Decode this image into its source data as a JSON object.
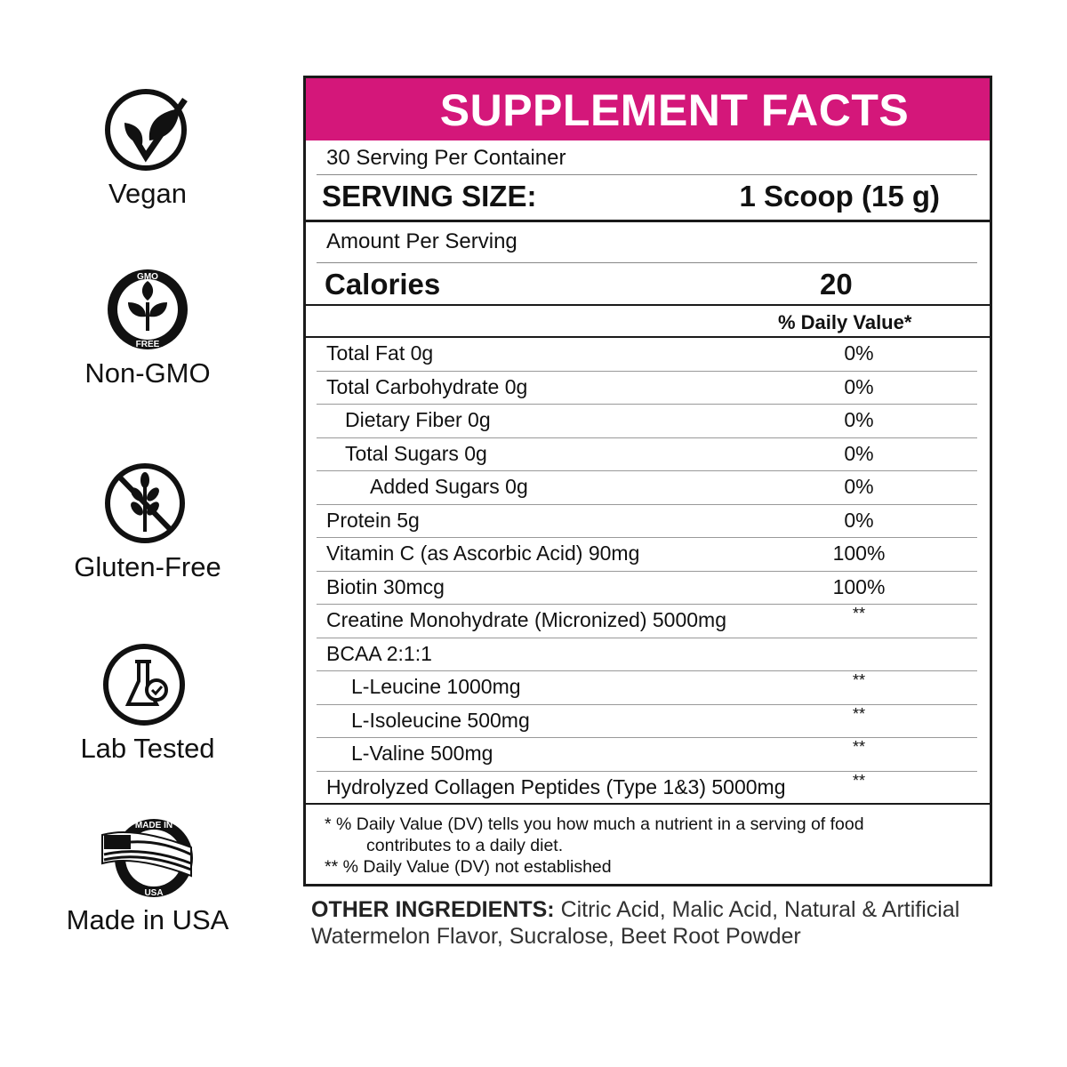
{
  "badges": [
    {
      "icon": "vegan-leaf-check-icon",
      "label": "Vegan"
    },
    {
      "icon": "non-gmo-icon",
      "label": "Non-GMO",
      "ring_top": "GMO",
      "ring_bottom": "FREE"
    },
    {
      "icon": "gluten-free-icon",
      "label": "Gluten-Free"
    },
    {
      "icon": "lab-flask-icon",
      "label": "Lab Tested"
    },
    {
      "icon": "usa-flag-seal-icon",
      "label": "Made in USA",
      "seal_top": "MADE IN",
      "seal_bottom": "USA"
    }
  ],
  "facts": {
    "title": "SUPPLEMENT FACTS",
    "accent_color": "#d4177a",
    "servings_per_container": "30 Serving Per Container",
    "serving_size_label": "SERVING SIZE:",
    "serving_size_value": "1 Scoop (15 g)",
    "amount_per_serving": "Amount Per Serving",
    "calories_label": "Calories",
    "calories_value": "20",
    "dv_header": "% Daily Value*",
    "rows": [
      {
        "name": "Total Fat 0g",
        "dv": "0%",
        "indent": 0
      },
      {
        "name": "Total Carbohydrate 0g",
        "dv": "0%",
        "indent": 0
      },
      {
        "name": "Dietary Fiber 0g",
        "dv": "0%",
        "indent": 1
      },
      {
        "name": "Total Sugars 0g",
        "dv": "0%",
        "indent": 1
      },
      {
        "name": "Added Sugars 0g",
        "dv": "0%",
        "indent": 2
      },
      {
        "name": "Protein 5g",
        "dv": "0%",
        "indent": 0
      },
      {
        "name": "Vitamin C (as Ascorbic Acid) 90mg",
        "dv": "100%",
        "indent": 0
      },
      {
        "name": "Biotin 30mcg",
        "dv": "100%",
        "indent": 0
      },
      {
        "name": "Creatine Monohydrate (Micronized) 5000mg",
        "dv": "**",
        "indent": 0
      },
      {
        "name": "BCAA 2:1:1",
        "dv": "",
        "indent": 0
      },
      {
        "name": "L-Leucine 1000mg",
        "dv": "**",
        "indent": 1
      },
      {
        "name": "L-Isoleucine 500mg",
        "dv": "**",
        "indent": 1
      },
      {
        "name": "L-Valine 500mg",
        "dv": "**",
        "indent": 1
      },
      {
        "name": "Hydrolyzed Collagen Peptides (Type 1&3) 5000mg",
        "dv": "**",
        "indent": 0
      }
    ],
    "footnote_1a": "* %  Daily Value (DV) tells you how much a nutrient in a serving of food",
    "footnote_1b": "contributes to a daily diet.",
    "footnote_2": "** % Daily Value (DV) not established"
  },
  "other_ingredients": {
    "label": "OTHER INGREDIENTS:",
    "text": " Citric Acid, Malic Acid, Natural & Artificial Watermelon Flavor, Sucralose, Beet Root Powder"
  }
}
